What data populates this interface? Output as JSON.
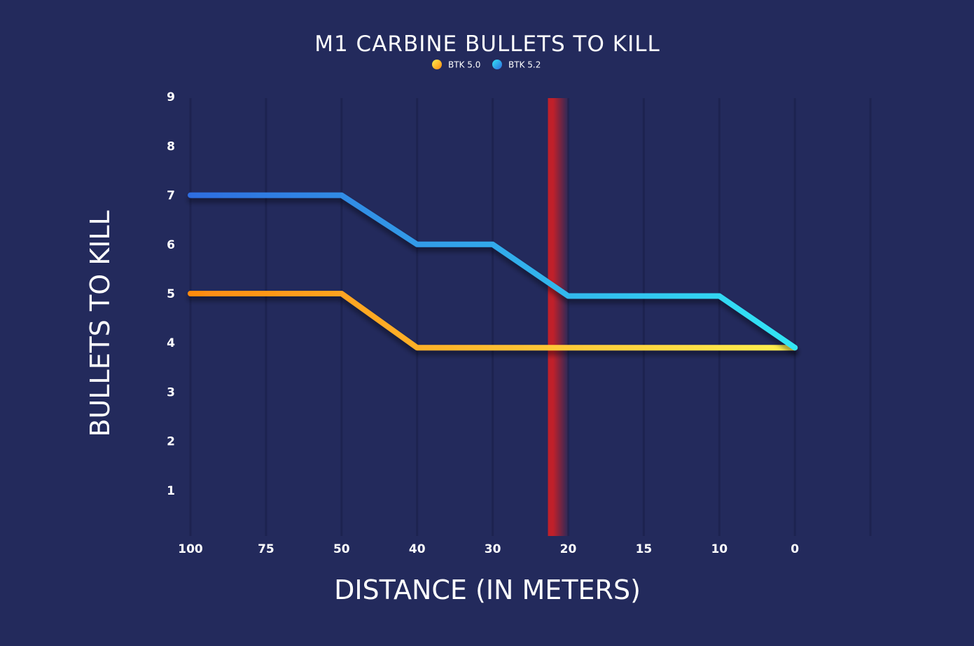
{
  "colors": {
    "background": "#232a5c",
    "gridline": "#1d2350",
    "threshold": "#c0202a",
    "series_a_start": "#ff8a10",
    "series_a_end": "#fff050",
    "series_b_start": "#2f6de0",
    "series_b_end": "#32e6f5"
  },
  "chart_data": {
    "type": "line",
    "title": "M1 CARBINE BULLETS TO KILL",
    "xlabel": "DISTANCE (IN METERS)",
    "ylabel": "BULLETS TO KILL",
    "categories": [
      "100",
      "75",
      "50",
      "40",
      "30",
      "20",
      "15",
      "10",
      "0"
    ],
    "yticks": [
      1,
      2,
      3,
      4,
      5,
      6,
      7,
      8,
      9
    ],
    "ylim": [
      0,
      9
    ],
    "grid": true,
    "legend_position": "top-center",
    "threshold_category_position": 4.75,
    "series": [
      {
        "name": "BTK 5.0",
        "values": [
          5,
          5,
          5,
          3.9,
          3.9,
          3.9,
          3.9,
          3.9,
          3.9
        ]
      },
      {
        "name": "BTK 5.2",
        "values": [
          7,
          7,
          7,
          6,
          6,
          4.95,
          4.95,
          4.95,
          3.9
        ]
      }
    ]
  }
}
